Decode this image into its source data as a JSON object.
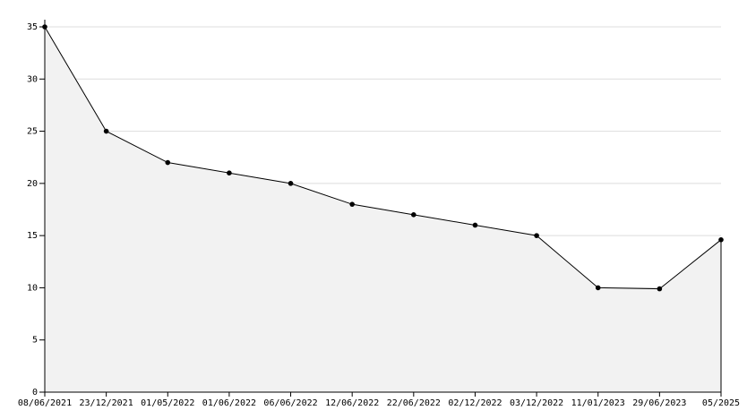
{
  "chart_data": {
    "type": "area",
    "categories": [
      "08/06/2021",
      "23/12/2021",
      "01/05/2022",
      "01/06/2022",
      "06/06/2022",
      "12/06/2022",
      "22/06/2022",
      "02/12/2022",
      "03/12/2022",
      "11/01/2023",
      "29/06/2023",
      "05/2025"
    ],
    "values": [
      35,
      25,
      22,
      21,
      20,
      18,
      17,
      16,
      15,
      10,
      9.9,
      14.6
    ],
    "color": "#000000",
    "fill": "#f2f2f2",
    "ylim": [
      0,
      35
    ],
    "yticks": [
      0,
      5,
      10,
      15,
      20,
      25,
      30,
      35
    ],
    "grid": true
  }
}
